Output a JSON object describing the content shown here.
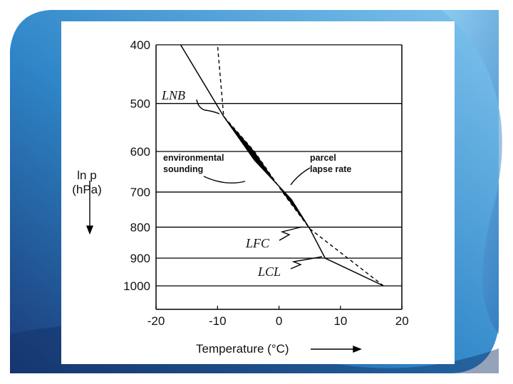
{
  "slide": {
    "colors": {
      "background": "#ffffff",
      "swoosh_dark": "#1a3a78",
      "swoosh_mid": "#2f86c8",
      "swoosh_light": "#7fc4ee"
    }
  },
  "chart_data": {
    "type": "line",
    "xlabel": "Temperature (°C)",
    "ylabel_line1": "ln p",
    "ylabel_line2": "(hPa)",
    "xlim": [
      -20,
      20
    ],
    "ylim": [
      1000,
      400
    ],
    "y_scale": "log",
    "grid": "horizontal",
    "x_ticks": [
      -20,
      -10,
      0,
      10,
      20
    ],
    "x_tick_labels": [
      "-20",
      "-10",
      "0",
      "10",
      "20"
    ],
    "y_ticks": [
      400,
      500,
      600,
      700,
      800,
      900,
      1000
    ],
    "y_tick_labels": [
      "400",
      "500",
      "600",
      "700",
      "800",
      "900",
      "1000"
    ],
    "series": [
      {
        "name": "environmental sounding",
        "style": "solid",
        "color": "#000000",
        "points": [
          {
            "x": 17,
            "y": 1000
          },
          {
            "x": 7.5,
            "y": 900
          },
          {
            "x": 5,
            "y": 805
          },
          {
            "x": 2,
            "y": 720
          },
          {
            "x": -4,
            "y": 620
          },
          {
            "x": -9,
            "y": 525
          },
          {
            "x": -16,
            "y": 400
          }
        ]
      },
      {
        "name": "parcel lapse rate",
        "style": "dashed",
        "color": "#000000",
        "points": [
          {
            "x": 17,
            "y": 1000
          },
          {
            "x": 5,
            "y": 805
          },
          {
            "x": 1,
            "y": 710
          },
          {
            "x": -4,
            "y": 600
          },
          {
            "x": -9,
            "y": 525
          },
          {
            "x": -10,
            "y": 400
          }
        ]
      }
    ],
    "shaded_region": {
      "from_pressure": 805,
      "to_pressure": 525,
      "color": "#000000"
    },
    "annotations": [
      {
        "text": "LNB",
        "style": "italic",
        "x": -9,
        "y": 525
      },
      {
        "text": "LFC",
        "style": "italic",
        "x": 5,
        "y": 805
      },
      {
        "text": "LCL",
        "style": "italic",
        "x": 7.5,
        "y": 900
      },
      {
        "text_lines": [
          "environmental",
          "sounding"
        ],
        "style": "bold-small"
      },
      {
        "text_lines": [
          "parcel",
          "lapse rate"
        ],
        "style": "bold-small"
      }
    ]
  }
}
